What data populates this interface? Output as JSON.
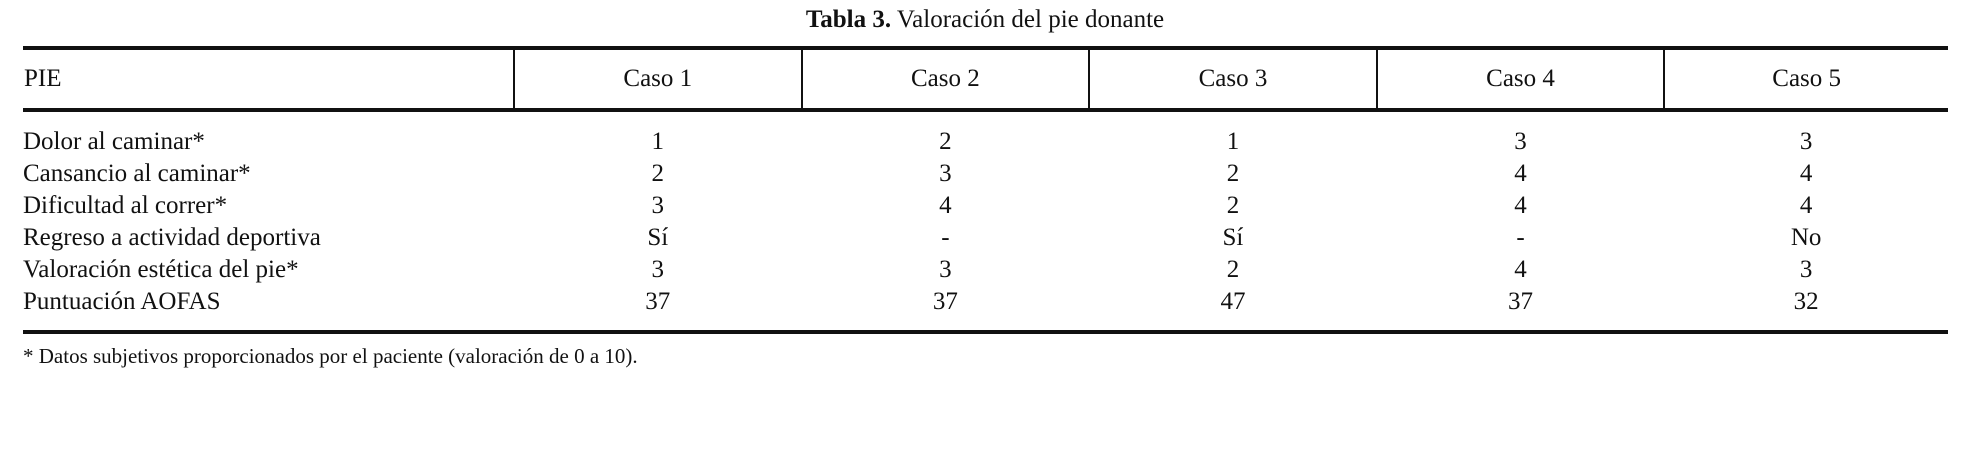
{
  "title": {
    "label": "Tabla 3.",
    "text": " Valoración del pie donante"
  },
  "table": {
    "headers": [
      "PIE",
      "Caso 1",
      "Caso 2",
      "Caso 3",
      "Caso 4",
      "Caso 5"
    ],
    "rows": [
      [
        "Dolor al caminar*",
        "1",
        "2",
        "1",
        "3",
        "3"
      ],
      [
        "Cansancio al caminar*",
        "2",
        "3",
        "2",
        "4",
        "4"
      ],
      [
        "Dificultad al correr*",
        "3",
        "4",
        "2",
        "4",
        "4"
      ],
      [
        "Regreso a actividad deportiva",
        "Sí",
        "-",
        "Sí",
        "-",
        "No"
      ],
      [
        "Valoración estética del pie*",
        "3",
        "3",
        "2",
        "4",
        "3"
      ],
      [
        "Puntuación AOFAS",
        "37",
        "37",
        "47",
        "37",
        "32"
      ]
    ]
  },
  "footnote": "* Datos subjetivos proporcionados por el paciente (valoración de 0 a 10)."
}
